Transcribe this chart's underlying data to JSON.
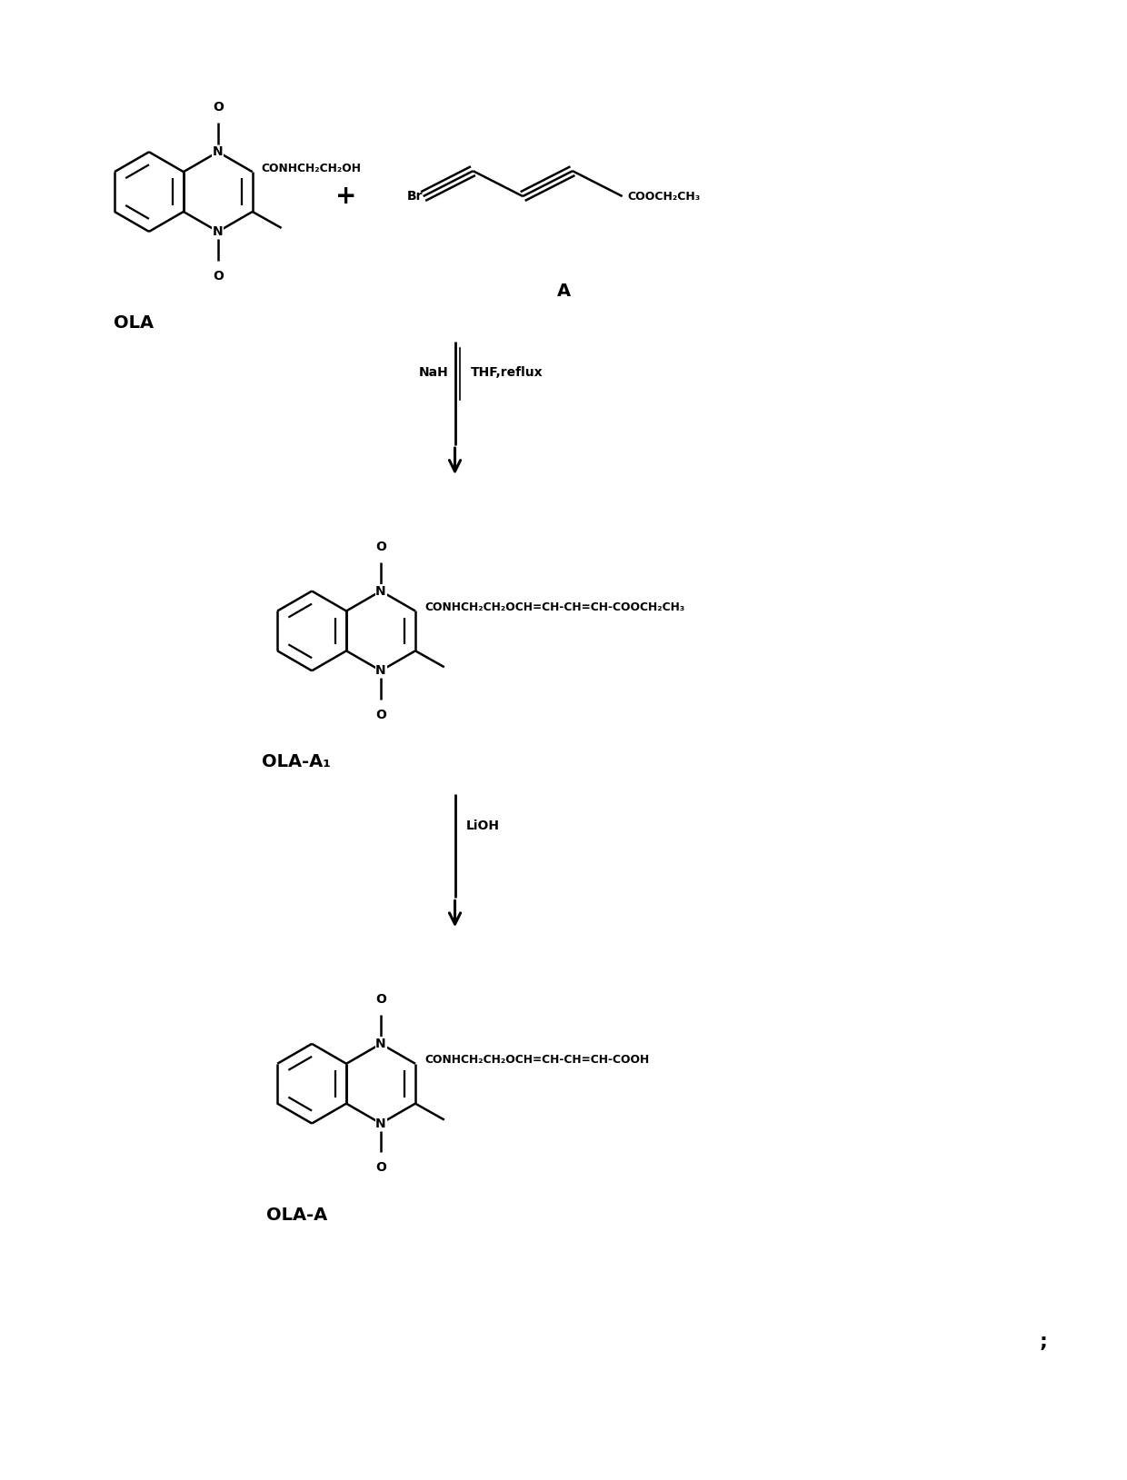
{
  "bg_color": "#ffffff",
  "text_color": "#000000",
  "line_color": "#000000",
  "figsize": [
    12.4,
    16.29
  ],
  "dpi": 100,
  "labels": {
    "OLA": "OLA",
    "A": "A",
    "OLA_A1": "OLA-A₁",
    "OLA_A": "OLA-A",
    "NaH": "NaH",
    "THF_reflux": "THF,reflux",
    "LiOH": "LiOH",
    "plus": "+",
    "semicolon": ";",
    "CONHCH2CH2OH": "CONHCH₂CH₂OH",
    "COOCH2CH3_A": "COOCH₂CH₃",
    "Br": "Br",
    "side_chain_1": "CONHCH₂CH₂OCH=CH-CH=CH-COOCH₂CH₃",
    "side_chain_2": "CONHCH₂CH₂OCH=CH-CH=CH-COOH",
    "O": "O",
    "N": "N"
  }
}
